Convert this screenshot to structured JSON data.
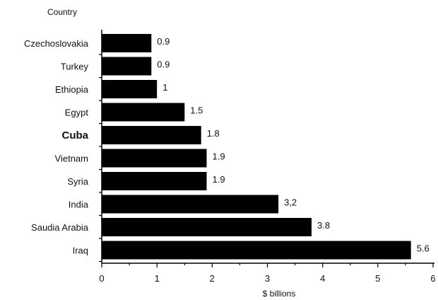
{
  "chart_data": {
    "type": "bar",
    "orientation": "horizontal",
    "title": "",
    "ylabel": "Country",
    "xlabel": "$  billions",
    "xlim": [
      0,
      6
    ],
    "xticks": [
      0,
      1,
      2,
      3,
      4,
      5,
      6
    ],
    "xtick_labels": [
      "0",
      "1",
      "2",
      "3",
      "4",
      "5",
      "6"
    ],
    "categories": [
      "Czechoslovakia",
      "Turkey",
      "Ethiopia",
      "Egypt",
      "Cuba",
      "Vietnam",
      "Syria",
      "India",
      "Saudia  Arabia",
      "Iraq"
    ],
    "emphasized_category": "Cuba",
    "values": [
      0.9,
      0.9,
      1,
      1.5,
      1.8,
      1.9,
      1.9,
      3.2,
      3.8,
      5.6
    ],
    "value_labels": [
      "0.9",
      "0.9",
      "1",
      "1.5",
      "1.8",
      "1.9",
      "1.9",
      "3,2",
      "3.8",
      "5.6"
    ],
    "bar_color": "#000000",
    "grid": false,
    "legend": "none"
  }
}
